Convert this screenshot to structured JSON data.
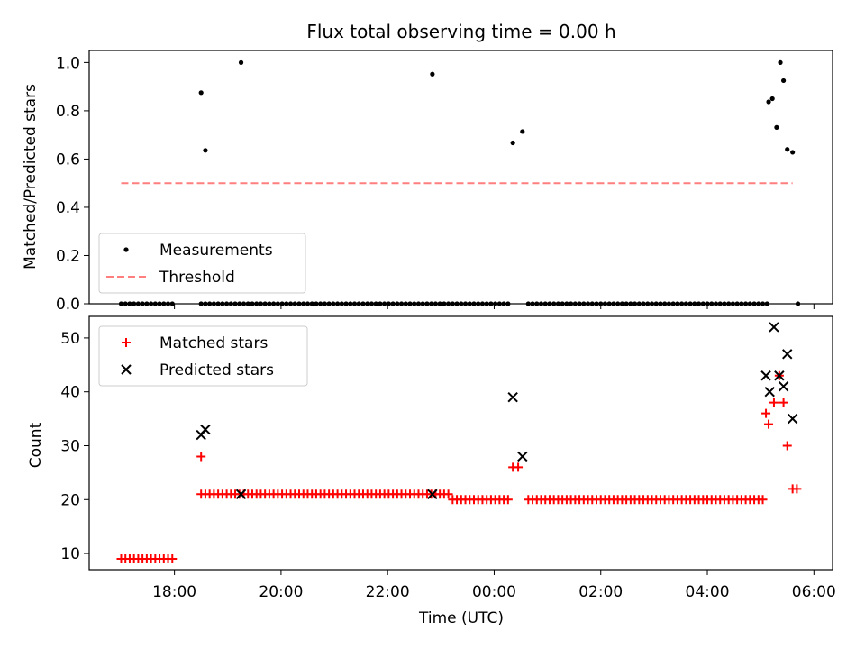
{
  "chart_data": [
    {
      "type": "scatter",
      "title": "Flux total observing time = 0.00 h",
      "xlabel": "",
      "ylabel": "Matched/Predicted stars",
      "xlim": [
        -1.6,
        12.35
      ],
      "ylim": [
        0,
        1.05
      ],
      "yticks": [
        0,
        0.2,
        0.4,
        0.6,
        0.8,
        1.0
      ],
      "ytick_labels": [
        "0.0",
        "0.2",
        "0.4",
        "0.6",
        "0.8",
        "1.0"
      ],
      "legend_position": "lower-left",
      "series": [
        {
          "name": "Measurements",
          "kind": "scatter",
          "color": "#000000",
          "x": [
            -1.0,
            -0.92,
            -0.84,
            -0.76,
            -0.68,
            -0.6,
            -0.52,
            -0.44,
            -0.36,
            -0.28,
            -0.2,
            -0.12,
            -0.04,
            0.5,
            0.58,
            0.66,
            0.74,
            0.82,
            0.9,
            0.98,
            1.06,
            1.14,
            1.22,
            1.3,
            1.38,
            1.46,
            1.54,
            1.62,
            1.7,
            1.78,
            1.86,
            1.94,
            2.02,
            2.1,
            2.18,
            2.26,
            2.34,
            2.42,
            2.5,
            2.58,
            2.66,
            2.74,
            2.82,
            2.9,
            2.98,
            3.06,
            3.14,
            3.22,
            3.3,
            3.38,
            3.46,
            3.54,
            3.62,
            3.7,
            3.78,
            3.86,
            3.94,
            4.02,
            4.1,
            4.18,
            4.26,
            4.34,
            4.42,
            4.5,
            4.58,
            4.66,
            4.74,
            4.82,
            4.9,
            4.98,
            5.06,
            5.14,
            5.22,
            5.3,
            5.38,
            5.46,
            5.54,
            5.62,
            5.7,
            5.78,
            5.86,
            5.94,
            6.02,
            6.1,
            6.18,
            6.26,
            6.64,
            6.72,
            6.8,
            6.88,
            6.96,
            7.04,
            7.12,
            7.2,
            7.28,
            7.36,
            7.44,
            7.52,
            7.6,
            7.68,
            7.76,
            7.84,
            7.92,
            8.0,
            8.08,
            8.16,
            8.24,
            8.32,
            8.4,
            8.48,
            8.56,
            8.64,
            8.72,
            8.8,
            8.88,
            8.96,
            9.04,
            9.12,
            9.2,
            9.28,
            9.36,
            9.44,
            9.52,
            9.6,
            9.68,
            9.76,
            9.84,
            9.92,
            10.0,
            10.08,
            10.16,
            10.24,
            10.32,
            10.4,
            10.48,
            10.56,
            10.64,
            10.72,
            10.8,
            10.88,
            10.96,
            11.04,
            11.12,
            11.7,
            0.5,
            0.58,
            1.25,
            4.84,
            6.35,
            6.53,
            11.15,
            11.22,
            11.3,
            11.37,
            11.43,
            11.5,
            11.6
          ],
          "y": [
            0,
            0,
            0,
            0,
            0,
            0,
            0,
            0,
            0,
            0,
            0,
            0,
            0,
            0,
            0,
            0,
            0,
            0,
            0,
            0,
            0,
            0,
            0,
            0,
            0,
            0,
            0,
            0,
            0,
            0,
            0,
            0,
            0,
            0,
            0,
            0,
            0,
            0,
            0,
            0,
            0,
            0,
            0,
            0,
            0,
            0,
            0,
            0,
            0,
            0,
            0,
            0,
            0,
            0,
            0,
            0,
            0,
            0,
            0,
            0,
            0,
            0,
            0,
            0,
            0,
            0,
            0,
            0,
            0,
            0,
            0,
            0,
            0,
            0,
            0,
            0,
            0,
            0,
            0,
            0,
            0,
            0,
            0,
            0,
            0,
            0,
            0,
            0,
            0,
            0,
            0,
            0,
            0,
            0,
            0,
            0,
            0,
            0,
            0,
            0,
            0,
            0,
            0,
            0,
            0,
            0,
            0,
            0,
            0,
            0,
            0,
            0,
            0,
            0,
            0,
            0,
            0,
            0,
            0,
            0,
            0,
            0,
            0,
            0,
            0,
            0,
            0,
            0,
            0,
            0,
            0,
            0,
            0,
            0,
            0,
            0,
            0,
            0,
            0,
            0,
            0,
            0,
            0,
            0,
            0.875,
            0.636,
            1.0,
            0.952,
            0.667,
            0.714,
            0.837,
            0.85,
            0.731,
            1.0,
            0.925,
            0.64,
            0.628
          ]
        },
        {
          "name": "Threshold",
          "kind": "dashed-line",
          "color": "#ff7f7f",
          "x": [
            -1.0,
            11.6
          ],
          "y": [
            0.5,
            0.5
          ]
        }
      ]
    },
    {
      "type": "scatter",
      "title": "",
      "xlabel": "Time (UTC)",
      "ylabel": "Count",
      "xlim": [
        -1.6,
        12.35
      ],
      "ylim": [
        7,
        54
      ],
      "yticks": [
        10,
        20,
        30,
        40,
        50
      ],
      "ytick_labels": [
        "10",
        "20",
        "30",
        "40",
        "50"
      ],
      "xticks": [
        0,
        2,
        4,
        6,
        8,
        10,
        12
      ],
      "xtick_labels": [
        "18:00",
        "20:00",
        "22:00",
        "00:00",
        "02:00",
        "04:00",
        "06:00"
      ],
      "legend_position": "upper-left",
      "series": [
        {
          "name": "Matched stars",
          "marker": "plus",
          "color": "#ff0000",
          "x": [
            -1.0,
            -0.92,
            -0.84,
            -0.76,
            -0.68,
            -0.6,
            -0.52,
            -0.44,
            -0.36,
            -0.28,
            -0.2,
            -0.12,
            -0.04,
            0.5,
            0.58,
            0.66,
            0.74,
            0.82,
            0.9,
            0.98,
            1.06,
            1.14,
            1.22,
            1.3,
            1.38,
            1.46,
            1.54,
            1.62,
            1.7,
            1.78,
            1.86,
            1.94,
            2.02,
            2.1,
            2.18,
            2.26,
            2.34,
            2.42,
            2.5,
            2.58,
            2.66,
            2.74,
            2.82,
            2.9,
            2.98,
            3.06,
            3.14,
            3.22,
            3.3,
            3.38,
            3.46,
            3.54,
            3.62,
            3.7,
            3.78,
            3.86,
            3.94,
            4.02,
            4.1,
            4.18,
            4.26,
            4.34,
            4.42,
            4.5,
            4.58,
            4.66,
            4.74,
            4.82,
            4.9,
            4.98,
            5.06,
            5.14,
            5.22,
            5.3,
            5.38,
            5.46,
            5.54,
            5.62,
            5.7,
            5.78,
            5.86,
            5.94,
            6.02,
            6.1,
            6.18,
            6.26,
            6.64,
            6.72,
            6.8,
            6.88,
            6.96,
            7.04,
            7.12,
            7.2,
            7.28,
            7.36,
            7.44,
            7.52,
            7.6,
            7.68,
            7.76,
            7.84,
            7.92,
            8.0,
            8.08,
            8.16,
            8.24,
            8.32,
            8.4,
            8.48,
            8.56,
            8.64,
            8.72,
            8.8,
            8.88,
            8.96,
            9.04,
            9.12,
            9.2,
            9.28,
            9.36,
            9.44,
            9.52,
            9.6,
            9.68,
            9.76,
            9.84,
            9.92,
            10.0,
            10.08,
            10.16,
            10.24,
            10.32,
            10.4,
            10.48,
            10.56,
            10.64,
            10.72,
            10.8,
            10.88,
            10.96,
            11.04,
            0.5,
            6.35,
            6.45,
            11.1,
            11.15,
            11.25,
            11.35,
            11.43,
            11.5,
            11.6,
            11.68
          ],
          "y": [
            9,
            9,
            9,
            9,
            9,
            9,
            9,
            9,
            9,
            9,
            9,
            9,
            9,
            21,
            21,
            21,
            21,
            21,
            21,
            21,
            21,
            21,
            21,
            21,
            21,
            21,
            21,
            21,
            21,
            21,
            21,
            21,
            21,
            21,
            21,
            21,
            21,
            21,
            21,
            21,
            21,
            21,
            21,
            21,
            21,
            21,
            21,
            21,
            21,
            21,
            21,
            21,
            21,
            21,
            21,
            21,
            21,
            21,
            21,
            21,
            21,
            21,
            21,
            21,
            21,
            21,
            21,
            21,
            21,
            21,
            21,
            21,
            20,
            20,
            20,
            20,
            20,
            20,
            20,
            20,
            20,
            20,
            20,
            20,
            20,
            20,
            20,
            20,
            20,
            20,
            20,
            20,
            20,
            20,
            20,
            20,
            20,
            20,
            20,
            20,
            20,
            20,
            20,
            20,
            20,
            20,
            20,
            20,
            20,
            20,
            20,
            20,
            20,
            20,
            20,
            20,
            20,
            20,
            20,
            20,
            20,
            20,
            20,
            20,
            20,
            20,
            20,
            20,
            20,
            20,
            20,
            20,
            20,
            20,
            20,
            20,
            20,
            20,
            20,
            20,
            20,
            20,
            28,
            26,
            26,
            36,
            34,
            38,
            43,
            38,
            30,
            22,
            22
          ]
        },
        {
          "name": "Predicted stars",
          "marker": "x",
          "color": "#000000",
          "x": [
            0.5,
            0.58,
            1.25,
            4.84,
            6.35,
            6.53,
            11.1,
            11.17,
            11.25,
            11.35,
            11.43,
            11.5,
            11.6
          ],
          "y": [
            32,
            33,
            21,
            21,
            39,
            28,
            43,
            40,
            52,
            43,
            41,
            47,
            35
          ]
        }
      ]
    }
  ]
}
